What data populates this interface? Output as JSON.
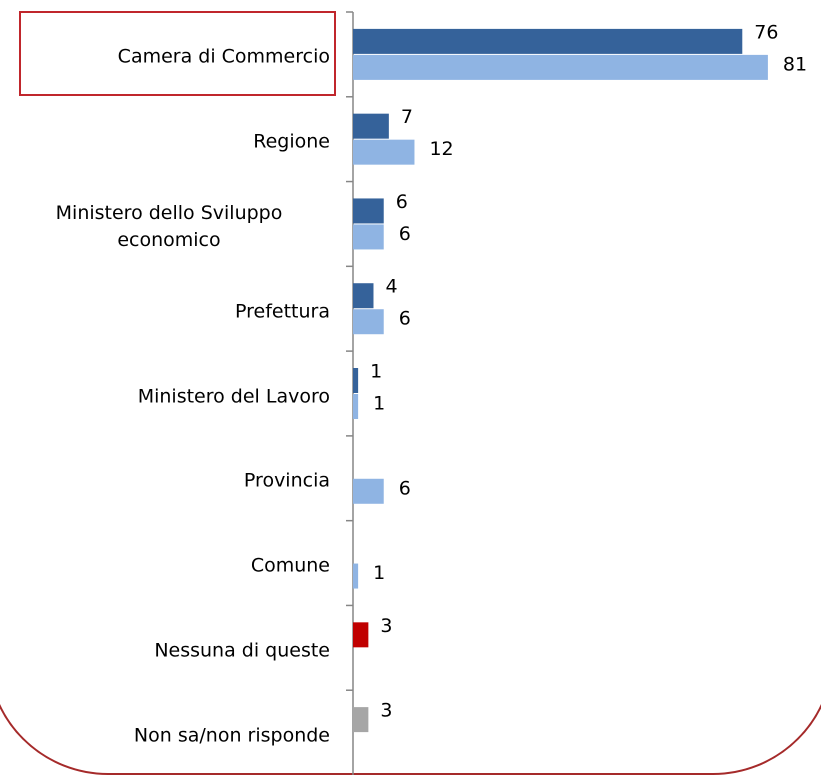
{
  "chart_data": {
    "type": "barh",
    "categories": [
      "Camera di Commercio",
      "Regione",
      "Ministero dello Sviluppo economico",
      "Prefettura",
      "Ministero del Lavoro",
      "Provincia",
      "Comune",
      "Nessuna di queste",
      "Non sa/non risponde"
    ],
    "series": [
      {
        "colors": [
          "#35629a",
          "#35629a",
          "#35629a",
          "#35629a",
          "#35629a",
          "#35629a",
          "#35629a",
          "#c00000",
          "#a6a6a6"
        ],
        "values": [
          76,
          7,
          6,
          4,
          1,
          null,
          null,
          3,
          3
        ]
      },
      {
        "color": "#8fb4e3",
        "values": [
          81,
          12,
          6,
          6,
          1,
          6,
          1,
          null,
          null
        ]
      }
    ],
    "xlim": [
      0,
      90
    ],
    "grid": false
  }
}
